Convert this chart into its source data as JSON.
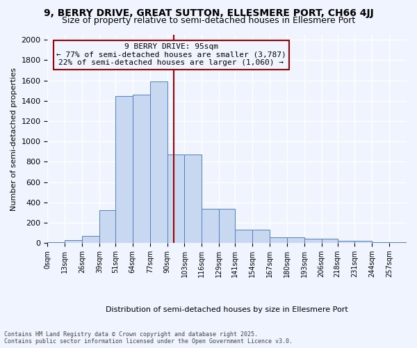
{
  "title_line1": "9, BERRY DRIVE, GREAT SUTTON, ELLESMERE PORT, CH66 4JJ",
  "title_line2": "Size of property relative to semi-detached houses in Ellesmere Port",
  "xlabel": "Distribution of semi-detached houses by size in Ellesmere Port",
  "ylabel": "Number of semi-detached properties",
  "footer": "Contains HM Land Registry data © Crown copyright and database right 2025.\nContains public sector information licensed under the Open Government Licence v3.0.",
  "bin_labels": [
    "0sqm",
    "13sqm",
    "26sqm",
    "39sqm",
    "51sqm",
    "64sqm",
    "77sqm",
    "90sqm",
    "103sqm",
    "116sqm",
    "129sqm",
    "141sqm",
    "154sqm",
    "167sqm",
    "180sqm",
    "193sqm",
    "206sqm",
    "218sqm",
    "231sqm",
    "244sqm",
    "257sqm"
  ],
  "bin_edges": [
    0,
    13,
    26,
    39,
    51,
    64,
    77,
    90,
    103,
    116,
    129,
    141,
    154,
    167,
    180,
    193,
    206,
    218,
    231,
    244,
    257
  ],
  "bar_values": [
    10,
    30,
    70,
    320,
    1450,
    1460,
    1590,
    870,
    870,
    340,
    340,
    130,
    130,
    55,
    55,
    40,
    40,
    20,
    20,
    5,
    5
  ],
  "bar_color": "#c8d8f0",
  "bar_edge_color": "#5080c0",
  "property_value": 95,
  "vline_color": "#a00000",
  "annotation_box_color": "#a00000",
  "annotation_text": "9 BERRY DRIVE: 95sqm\n← 77% of semi-detached houses are smaller (3,787)\n22% of semi-detached houses are larger (1,060) →",
  "annotation_fontsize": 8,
  "ylim": [
    0,
    2050
  ],
  "yticks": [
    0,
    200,
    400,
    600,
    800,
    1000,
    1200,
    1400,
    1600,
    1800,
    2000
  ],
  "bg_color": "#f0f4ff",
  "grid_color": "#ffffff",
  "title_fontsize": 10,
  "subtitle_fontsize": 9
}
